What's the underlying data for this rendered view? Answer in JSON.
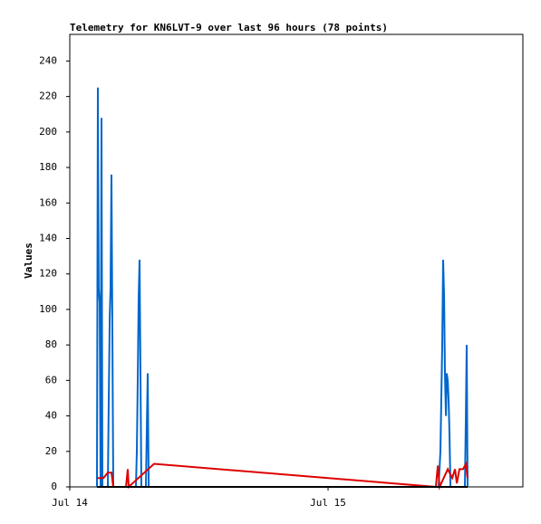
{
  "chart_data": {
    "type": "line",
    "title": "Telemetry for KN6LVT-9 over last 96 hours (78 points)",
    "ylabel": "Values",
    "xlim": [
      0,
      42.1
    ],
    "xticks": [
      {
        "value": 0,
        "label": "Jul 14"
      },
      {
        "value": 24,
        "label": "Jul 15"
      }
    ],
    "ylim": [
      0,
      255
    ],
    "yticks": [
      0,
      20,
      40,
      60,
      80,
      100,
      120,
      140,
      160,
      180,
      200,
      220,
      240
    ],
    "series": [
      {
        "color": "#0066cc",
        "x": [
          2.53,
          2.61,
          2.69,
          2.78,
          2.86,
          2.95,
          3.03,
          3.54,
          3.62,
          3.71,
          3.79,
          3.87,
          3.96,
          4.04,
          6.15,
          6.23,
          6.32,
          6.4,
          6.48,
          6.57,
          6.65,
          7.07,
          7.16,
          7.24,
          7.33,
          34.27,
          34.44,
          34.61,
          34.69,
          34.78,
          34.86,
          34.95,
          35.03,
          35.12,
          35.2,
          35.28,
          35.37,
          36.71,
          36.8,
          36.88,
          36.96
        ],
        "values": [
          0,
          225,
          112,
          104,
          0,
          208,
          0,
          0,
          48,
          96,
          112,
          176,
          88,
          0,
          0,
          20,
          64,
          106,
          128,
          64,
          0,
          0,
          32,
          64,
          0,
          0,
          20,
          80,
          128,
          106,
          64,
          40,
          64,
          60,
          48,
          30,
          0,
          0,
          40,
          80,
          0
        ]
      },
      {
        "color": "#dd0000",
        "x": [
          2.53,
          3.12,
          3.54,
          3.87,
          4.04,
          5.22,
          5.39,
          5.47,
          7.83,
          34.02,
          34.19,
          34.36,
          35.12,
          35.54,
          35.79,
          35.96,
          36.21,
          36.54,
          36.8,
          36.96
        ],
        "values": [
          5,
          5,
          8,
          8,
          0,
          0,
          10,
          0,
          13,
          0,
          12,
          0,
          10,
          5,
          10,
          2,
          10,
          10,
          13,
          5
        ]
      },
      {
        "color": "#000000",
        "x": [
          2.53,
          36.96
        ],
        "values": [
          0,
          0
        ]
      }
    ]
  }
}
